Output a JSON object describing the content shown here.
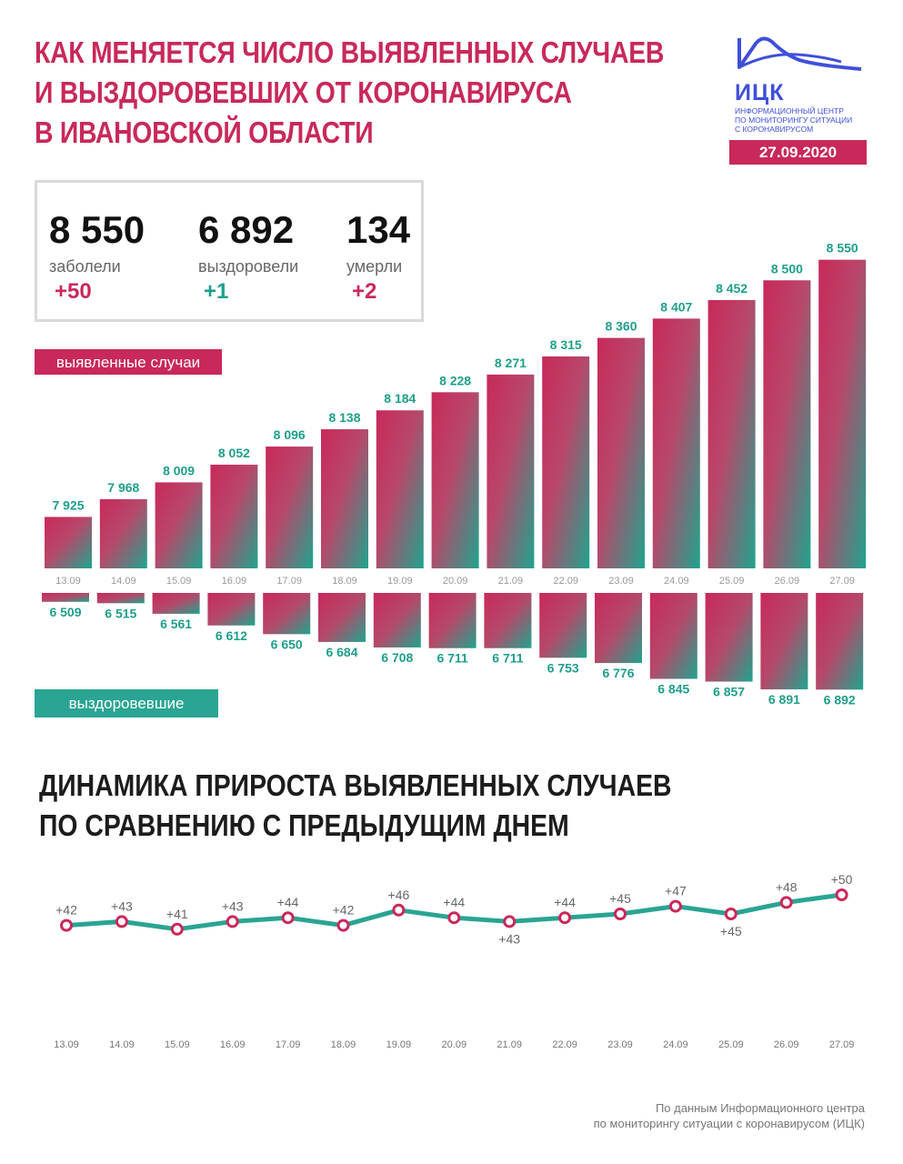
{
  "header": {
    "title_lines": [
      "КАК МЕНЯЕТСЯ ЧИСЛО ВЫЯВЛЕННЫХ СЛУЧАЕВ",
      "И ВЫЗДОРОВЕВШИХ ОТ КОРОНАВИРУСА",
      "В ИВАНОВСКОЙ ОБЛАСТИ"
    ]
  },
  "logo": {
    "name": "ИЦК",
    "subtitle_lines": [
      "Информационный центр",
      "по мониторингу ситуации",
      "с коронавирусом"
    ],
    "color": "#3f4fd9"
  },
  "date": "27.09.2020",
  "stats": [
    {
      "value": "8 550",
      "label": "заболели",
      "delta": "+50",
      "color": "#c8295a"
    },
    {
      "value": "6 892",
      "label": "выздоровели",
      "delta": "+1",
      "color": "#1f9e8a"
    },
    {
      "value": "134",
      "label": "умерли",
      "delta": "+2",
      "color": "#c8295a"
    }
  ],
  "labels": {
    "cases": "выявленные случаи",
    "recovered": "выздоровевшие"
  },
  "subtitle_lines": [
    "ДИНАМИКА ПРИРОСТА ВЫЯВЛЕННЫХ СЛУЧАЕВ",
    "ПО СРАВНЕНИЮ С ПРЕДЫДУЩИМ ДНЕМ"
  ],
  "source_lines": [
    "По данным Информационного центра",
    "по мониторингу ситуации с коронавирусом (ИЦК)"
  ],
  "colors": {
    "accent_red": "#c8295a",
    "accent_green": "#2aa493",
    "line": "#2aa493"
  },
  "chart_data": [
    {
      "type": "bar",
      "categories": [
        "13.09",
        "14.09",
        "15.09",
        "16.09",
        "17.09",
        "18.09",
        "19.09",
        "20.09",
        "21.09",
        "22.09",
        "23.09",
        "24.09",
        "25.09",
        "26.09",
        "27.09"
      ],
      "series": [
        {
          "name": "выявленные случаи",
          "values": [
            7925,
            7968,
            8009,
            8052,
            8096,
            8138,
            8184,
            8228,
            8271,
            8315,
            8360,
            8407,
            8452,
            8500,
            8550
          ],
          "labels": [
            "7 925",
            "7 968",
            "8 009",
            "8 052",
            "8 096",
            "8 138",
            "8 184",
            "8 228",
            "8 271",
            "8 315",
            "8 360",
            "8 407",
            "8 452",
            "8 500",
            "8 550"
          ]
        },
        {
          "name": "выздоровевшие",
          "values": [
            6509,
            6515,
            6561,
            6612,
            6650,
            6684,
            6708,
            6711,
            6711,
            6753,
            6776,
            6845,
            6857,
            6891,
            6892
          ],
          "labels": [
            "6 509",
            "6 515",
            "6 561",
            "6 612",
            "6 650",
            "6 684",
            "6 708",
            "6 711",
            "6 711",
            "6 753",
            "6 776",
            "6 845",
            "6 857",
            "6 891",
            "6 892"
          ]
        }
      ]
    },
    {
      "type": "line",
      "x": [
        "13.09",
        "14.09",
        "15.09",
        "16.09",
        "17.09",
        "18.09",
        "19.09",
        "20.09",
        "21.09",
        "22.09",
        "23.09",
        "24.09",
        "25.09",
        "26.09",
        "27.09"
      ],
      "values": [
        42,
        43,
        41,
        43,
        44,
        42,
        46,
        44,
        43,
        44,
        45,
        47,
        45,
        48,
        50
      ],
      "labels": [
        "+42",
        "+43",
        "+41",
        "+43",
        "+44",
        "+42",
        "+46",
        "+44",
        "+43",
        "+44",
        "+45",
        "+47",
        "+45",
        "+48",
        "+50"
      ],
      "label_position": [
        "above",
        "above",
        "above",
        "above",
        "above",
        "above",
        "above",
        "above",
        "below",
        "above",
        "above",
        "above",
        "below",
        "above",
        "above"
      ]
    }
  ]
}
